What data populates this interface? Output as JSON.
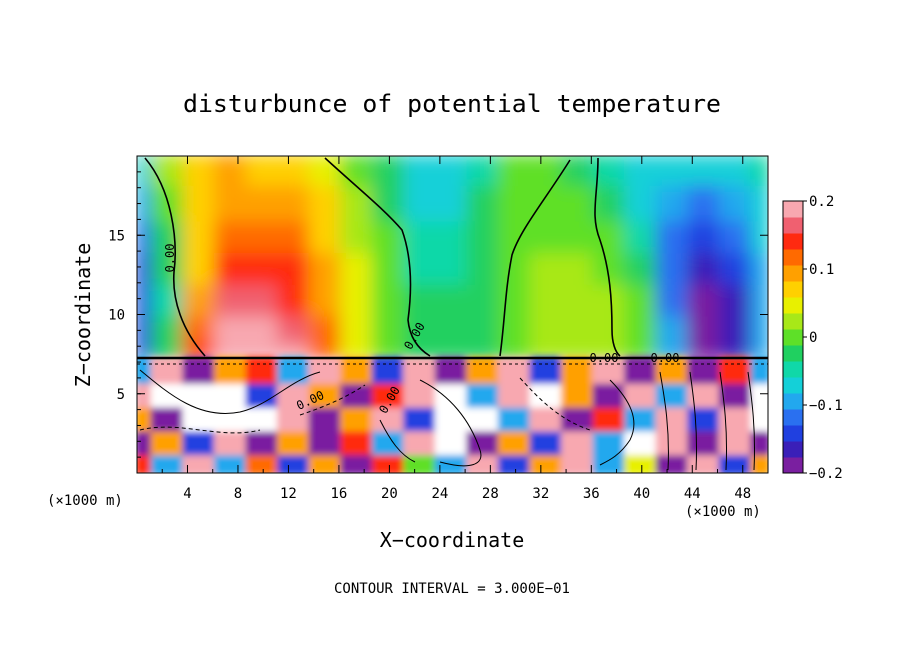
{
  "chart_data": {
    "type": "heatmap",
    "title": "disturbunce of potential temperature",
    "xlabel": "X−coordinate",
    "ylabel": "Z−coordinate",
    "x_unit_left": "(×1000 m)",
    "x_unit_right": "(×1000 m)",
    "footer": "CONTOUR INTERVAL = 3.000E−01",
    "xlim": [
      0,
      50
    ],
    "ylim": [
      0,
      20
    ],
    "x_ticks": [
      "4",
      "8",
      "12",
      "16",
      "20",
      "24",
      "28",
      "32",
      "36",
      "40",
      "44",
      "48"
    ],
    "y_ticks": [
      "5",
      "10",
      "15"
    ],
    "colorbar": {
      "range": [
        -0.2,
        0.2
      ],
      "ticks": [
        "0.2",
        "0.1",
        "0",
        "−0.1",
        "−0.2"
      ],
      "colors": [
        "#7a1fa0",
        "#3a1fb8",
        "#2040e0",
        "#2a70f0",
        "#22a8ee",
        "#14d0d8",
        "#10d8a8",
        "#20d060",
        "#5ee028",
        "#a8e818",
        "#e8f000",
        "#ffd000",
        "#ffa000",
        "#ff6a00",
        "#ff2a10",
        "#f06070",
        "#f8a8b0"
      ]
    },
    "contour_labels": [
      "0.00",
      "0.00",
      "0.00",
      "0.00",
      "0.00",
      "0.00"
    ],
    "layer_boundary_z": 7.2,
    "field_upper": {
      "x": [
        0,
        2.5,
        5,
        7.5,
        10,
        12.5,
        15,
        17.5,
        20,
        22.5,
        25,
        27.5,
        30,
        32.5,
        35,
        37.5,
        40,
        42.5,
        45,
        47.5,
        50
      ],
      "z": [
        7.5,
        9,
        11,
        13,
        15,
        17,
        19.5
      ],
      "values": [
        [
          -0.14,
          -0.02,
          0.15,
          0.2,
          0.2,
          0.18,
          0.12,
          0.05,
          0.0,
          -0.02,
          -0.03,
          -0.02,
          0.0,
          0.02,
          0.03,
          0.02,
          0.0,
          -0.1,
          -0.2,
          -0.17,
          -0.1
        ],
        [
          -0.15,
          -0.03,
          0.12,
          0.18,
          0.18,
          0.16,
          0.11,
          0.05,
          0.0,
          -0.02,
          -0.03,
          -0.02,
          0.0,
          0.02,
          0.03,
          0.02,
          0.0,
          -0.1,
          -0.2,
          -0.16,
          -0.1
        ],
        [
          -0.15,
          -0.04,
          0.1,
          0.16,
          0.16,
          0.14,
          0.1,
          0.05,
          0.0,
          -0.03,
          -0.03,
          -0.02,
          0.0,
          0.02,
          0.03,
          0.02,
          0.0,
          -0.11,
          -0.19,
          -0.16,
          -0.1
        ],
        [
          -0.14,
          -0.03,
          0.08,
          0.14,
          0.14,
          0.13,
          0.09,
          0.04,
          0.0,
          -0.04,
          -0.04,
          -0.02,
          0.0,
          0.02,
          0.02,
          0.01,
          -0.02,
          -0.12,
          -0.17,
          -0.14,
          -0.09
        ],
        [
          -0.12,
          -0.02,
          0.06,
          0.12,
          0.12,
          0.11,
          0.08,
          0.03,
          -0.01,
          -0.05,
          -0.05,
          -0.02,
          0.0,
          0.01,
          0.01,
          0.0,
          -0.04,
          -0.11,
          -0.14,
          -0.12,
          -0.08
        ],
        [
          -0.1,
          0.0,
          0.06,
          0.1,
          0.1,
          0.09,
          0.06,
          0.02,
          -0.02,
          -0.06,
          -0.06,
          -0.03,
          0.0,
          0.01,
          0.0,
          -0.02,
          -0.06,
          -0.09,
          -0.11,
          -0.1,
          -0.07
        ],
        [
          -0.06,
          0.02,
          0.07,
          0.09,
          0.08,
          0.07,
          0.05,
          0.01,
          -0.03,
          -0.07,
          -0.07,
          -0.04,
          -0.01,
          0.0,
          -0.02,
          -0.04,
          -0.06,
          -0.07,
          -0.08,
          -0.07,
          -0.05
        ]
      ]
    },
    "field_lower": {
      "x": [
        0,
        2.5,
        5,
        7.5,
        10,
        12.5,
        15,
        17.5,
        20,
        22.5,
        25,
        27.5,
        30,
        32.5,
        35,
        37.5,
        40,
        42.5,
        45,
        47.5,
        50
      ],
      "z": [
        0.5,
        2,
        3.5,
        5,
        6.5
      ],
      "values": [
        [
          0.15,
          -0.1,
          0.2,
          -0.1,
          0.12,
          -0.15,
          0.1,
          -0.2,
          0.15,
          0.0,
          -0.1,
          0.2,
          -0.15,
          0.1,
          0.2,
          -0.1,
          0.05,
          -0.2,
          0.2,
          -0.15,
          0.1
        ],
        [
          -0.2,
          0.1,
          -0.15,
          0.2,
          -0.18,
          0.1,
          -0.2,
          0.15,
          -0.1,
          0.2,
          0.25,
          -0.2,
          0.1,
          -0.15,
          0.2,
          -0.1,
          0.3,
          0.2,
          -0.2,
          0.2,
          -0.2
        ],
        [
          0.1,
          -0.2,
          0.3,
          0.3,
          0.25,
          0.2,
          -0.18,
          0.1,
          0.2,
          -0.15,
          0.3,
          0.25,
          -0.1,
          0.2,
          -0.2,
          0.15,
          -0.1,
          0.2,
          -0.15,
          0.2,
          0.3
        ],
        [
          0.2,
          0.3,
          0.3,
          0.3,
          -0.15,
          0.2,
          0.1,
          -0.2,
          0.15,
          0.2,
          0.3,
          -0.1,
          0.2,
          0.3,
          0.1,
          -0.2,
          0.2,
          -0.1,
          0.2,
          -0.2,
          0.3
        ],
        [
          -0.1,
          0.2,
          -0.2,
          0.1,
          0.15,
          -0.1,
          0.2,
          0.1,
          -0.15,
          0.2,
          -0.2,
          0.1,
          0.2,
          -0.15,
          0.1,
          0.2,
          -0.2,
          0.1,
          -0.2,
          0.15,
          -0.1
        ]
      ]
    }
  }
}
